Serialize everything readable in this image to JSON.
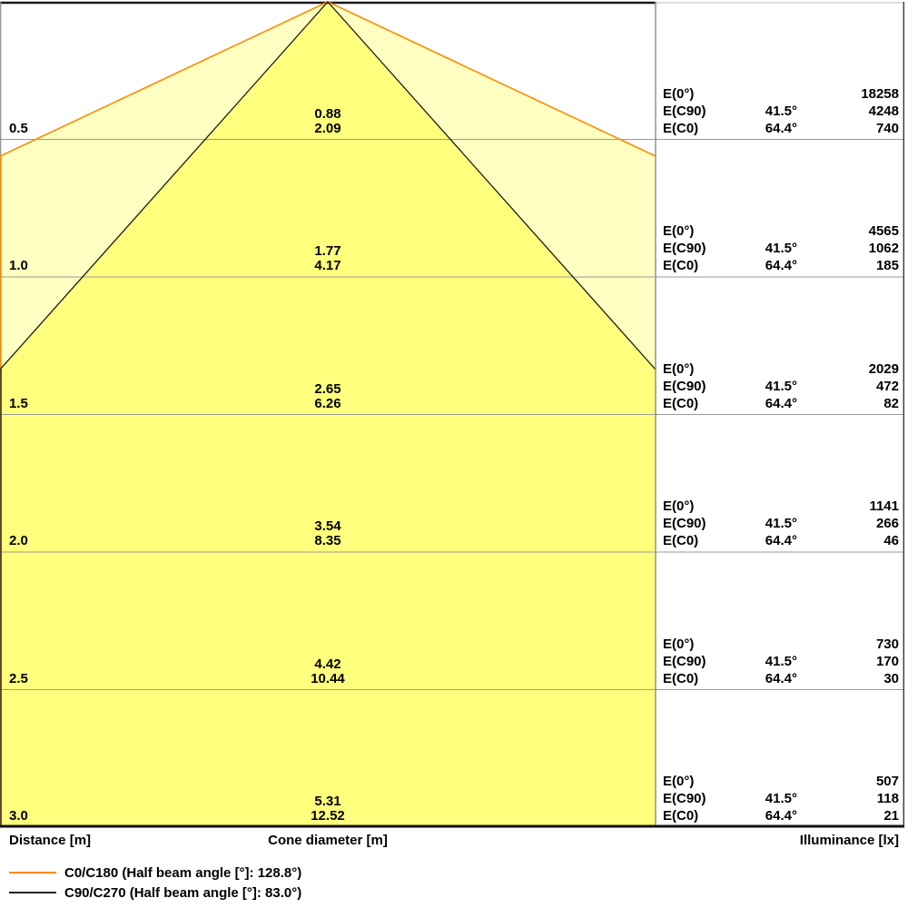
{
  "footer": {
    "distance_label": "Distance [m]",
    "cone_label": "Cone diameter [m]",
    "illuminance_label": "Illuminance [lx]"
  },
  "legend": {
    "items": [
      {
        "name": "c0-c180",
        "label": "C0/C180 (Half beam angle [°]: 128.8°)",
        "color": "#ff8c00"
      },
      {
        "name": "c90-c270",
        "label": "C90/C270 (Half beam angle [°]: 83.0°)",
        "color": "#1c1c1c"
      }
    ]
  },
  "rows": [
    {
      "distance": "0.5",
      "cone_line1": "0.88",
      "cone_line2": "2.09",
      "e0_label": "E(0°)",
      "e0_angle": "",
      "e0_value": "18258",
      "ec90_label": "E(C90)",
      "ec90_angle": "41.5°",
      "ec90_value": "4248",
      "ec0_label": "E(C0)",
      "ec0_angle": "64.4°",
      "ec0_value": "740"
    },
    {
      "distance": "1.0",
      "cone_line1": "1.77",
      "cone_line2": "4.17",
      "e0_label": "E(0°)",
      "e0_angle": "",
      "e0_value": "4565",
      "ec90_label": "E(C90)",
      "ec90_angle": "41.5°",
      "ec90_value": "1062",
      "ec0_label": "E(C0)",
      "ec0_angle": "64.4°",
      "ec0_value": "185"
    },
    {
      "distance": "1.5",
      "cone_line1": "2.65",
      "cone_line2": "6.26",
      "e0_label": "E(0°)",
      "e0_angle": "",
      "e0_value": "2029",
      "ec90_label": "E(C90)",
      "ec90_angle": "41.5°",
      "ec90_value": "472",
      "ec0_label": "E(C0)",
      "ec0_angle": "64.4°",
      "ec0_value": "82"
    },
    {
      "distance": "2.0",
      "cone_line1": "3.54",
      "cone_line2": "8.35",
      "e0_label": "E(0°)",
      "e0_angle": "",
      "e0_value": "1141",
      "ec90_label": "E(C90)",
      "ec90_angle": "41.5°",
      "ec90_value": "266",
      "ec0_label": "E(C0)",
      "ec0_angle": "64.4°",
      "ec0_value": "46"
    },
    {
      "distance": "2.5",
      "cone_line1": "4.42",
      "cone_line2": "10.44",
      "e0_label": "E(0°)",
      "e0_angle": "",
      "e0_value": "730",
      "ec90_label": "E(C90)",
      "ec90_angle": "41.5°",
      "ec90_value": "170",
      "ec0_label": "E(C0)",
      "ec0_angle": "64.4°",
      "ec0_value": "30"
    },
    {
      "distance": "3.0",
      "cone_line1": "5.31",
      "cone_line2": "12.52",
      "e0_label": "E(0°)",
      "e0_angle": "",
      "e0_value": "507",
      "ec90_label": "E(C90)",
      "ec90_angle": "41.5°",
      "ec90_value": "118",
      "ec0_label": "E(C0)",
      "ec0_angle": "64.4°",
      "ec0_value": "21"
    }
  ],
  "colors": {
    "outer_cone_fill": "#ffffc2",
    "inner_cone_fill": "#ffff7e",
    "outer_cone_stroke": "#ff8c00",
    "inner_cone_stroke": "#1c1c1c",
    "gridline": "#9a9a9a",
    "divider": "#8a8a8a",
    "frame": "#1a1a1a"
  },
  "chart_data": {
    "type": "cone-diagram",
    "title": "Luminaire light cone diagram with illuminance table",
    "ylabel": "Distance [m]",
    "xlabel": "Cone diameter [m]",
    "value_label": "Illuminance [lx]",
    "distances_m": [
      0.5,
      1.0,
      1.5,
      2.0,
      2.5,
      3.0
    ],
    "series": [
      {
        "name": "C90/C270",
        "half_beam_angle_deg": 83.0,
        "half_angle_label": "41.5°",
        "cone_diameter_m": [
          0.88,
          1.77,
          2.65,
          3.54,
          4.42,
          5.31
        ],
        "color": "#1c1c1c"
      },
      {
        "name": "C0/C180",
        "half_beam_angle_deg": 128.8,
        "half_angle_label": "64.4°",
        "cone_diameter_m": [
          2.09,
          4.17,
          6.26,
          8.35,
          10.44,
          12.52
        ],
        "color": "#ff8c00"
      }
    ],
    "illuminance_lx": {
      "E(0°)": [
        18258,
        4565,
        2029,
        1141,
        730,
        507
      ],
      "E(C90)": [
        4248,
        1062,
        472,
        266,
        170,
        118
      ],
      "E(C0)": [
        740,
        185,
        82,
        46,
        30,
        21
      ]
    },
    "legend_position": "bottom-left",
    "grid": true
  }
}
